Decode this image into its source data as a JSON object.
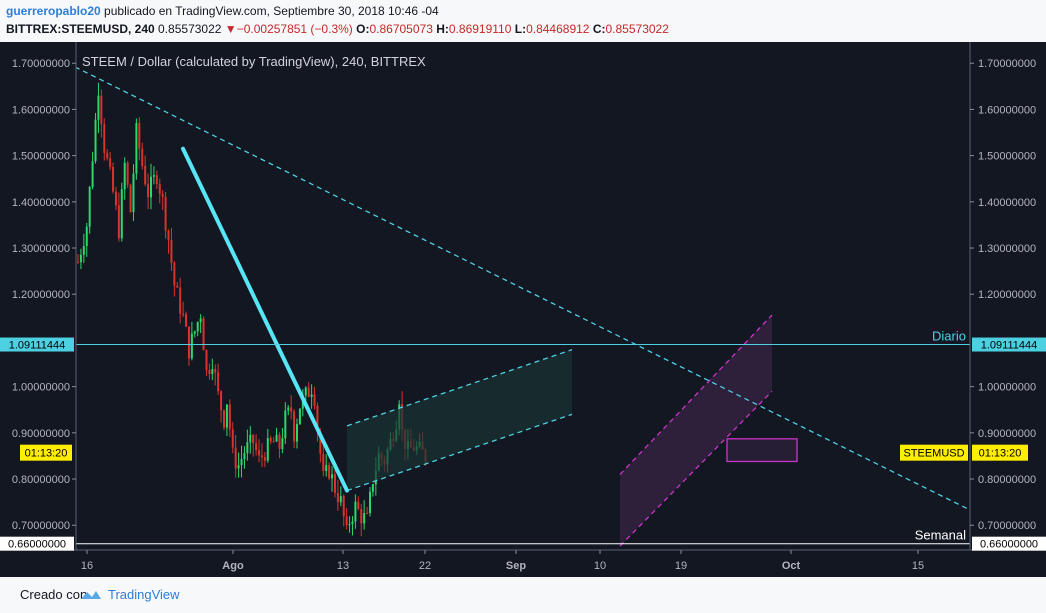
{
  "header": {
    "author": "guerreropablo20",
    "published": "publicado en TradingView.com, Septiembre 30, 2018 10:46 -04",
    "symbol": "BITTREX:STEEMUSD, 240",
    "last": "0.85573022",
    "change": "−0.00257851 (−0.3%)",
    "o_label": "O:",
    "o": "0.86705073",
    "h_label": "H:",
    "h": "0.86919110",
    "l_label": "L:",
    "l": "0.84468912",
    "c_label": "C:",
    "c": "0.85573022",
    "down_arrow_color": "#c62828"
  },
  "chart_data": {
    "type": "candlestick",
    "title": "STEEM / Dollar (calculated by TradingView), 240, BITTREX",
    "x_tick_labels": [
      "16",
      "Ago",
      "13",
      "22",
      "Sep",
      "10",
      "19",
      "Oct",
      "15"
    ],
    "y_tick_labels": [
      "1.70000000",
      "1.60000000",
      "1.50000000",
      "1.40000000",
      "1.30000000",
      "1.20000000",
      "1.00000000",
      "0.90000000",
      "0.80000000",
      "0.70000000"
    ],
    "ylim": [
      0.655,
      1.72
    ],
    "grid": false,
    "up_color": "#2bd96a",
    "down_color": "#d9342b",
    "path_anchors": [
      [
        0,
        1.27
      ],
      [
        3,
        1.35
      ],
      [
        5,
        1.5
      ],
      [
        7,
        1.65
      ],
      [
        9,
        1.52
      ],
      [
        12,
        1.42
      ],
      [
        14,
        1.34
      ],
      [
        16,
        1.48
      ],
      [
        18,
        1.38
      ],
      [
        20,
        1.55
      ],
      [
        22,
        1.48
      ],
      [
        24,
        1.42
      ],
      [
        27,
        1.46
      ],
      [
        29,
        1.4
      ],
      [
        31,
        1.32
      ],
      [
        33,
        1.22
      ],
      [
        36,
        1.15
      ],
      [
        38,
        1.08
      ],
      [
        40,
        1.12
      ],
      [
        42,
        1.16
      ],
      [
        44,
        1.03
      ],
      [
        46,
        1.06
      ],
      [
        48,
        0.98
      ],
      [
        50,
        0.93
      ],
      [
        51,
        0.97
      ],
      [
        53,
        0.85
      ],
      [
        55,
        0.83
      ],
      [
        57,
        0.86
      ],
      [
        60,
        0.88
      ],
      [
        62,
        0.84
      ],
      [
        64,
        0.86
      ],
      [
        67,
        0.88
      ],
      [
        69,
        0.87
      ],
      [
        71,
        0.93
      ],
      [
        73,
        0.95
      ],
      [
        74,
        0.9
      ],
      [
        76,
        0.96
      ],
      [
        78,
        0.98
      ],
      [
        80,
        1.0
      ],
      [
        81,
        0.98
      ],
      [
        82,
        0.91
      ],
      [
        84,
        0.8
      ],
      [
        86,
        0.82
      ],
      [
        88,
        0.78
      ],
      [
        90,
        0.75
      ],
      [
        92,
        0.68
      ],
      [
        93,
        0.71
      ],
      [
        95,
        0.74
      ],
      [
        97,
        0.72
      ],
      [
        99,
        0.71
      ],
      [
        101,
        0.8
      ],
      [
        103,
        0.85
      ],
      [
        105,
        0.84
      ],
      [
        107,
        0.88
      ],
      [
        109,
        0.93
      ],
      [
        110,
        0.98
      ],
      [
        111,
        0.9
      ],
      [
        113,
        0.86
      ],
      [
        115,
        0.87
      ],
      [
        117,
        0.86
      ],
      [
        119,
        0.85
      ]
    ],
    "candle_start_x": 78,
    "candle_step_px": 2.92,
    "horizontal_lines": [
      {
        "label": "Diario",
        "value": 1.09111444,
        "price_label": "1.09111444",
        "color": "#4dd0e1"
      },
      {
        "label": "Semanal",
        "value": 0.66,
        "price_label": "0.66000000",
        "color": "#ffffff"
      }
    ],
    "trendlines": [
      {
        "name": "descending-resistance",
        "from": [
          75,
          1.692
        ],
        "to": [
          970,
          0.733
        ],
        "style": "dashed",
        "color": "#4dd0e1"
      },
      {
        "name": "decline-trendline",
        "from": [
          183,
          1.515
        ],
        "to": [
          347,
          0.775
        ],
        "style": "solid",
        "color": "#56e6f5"
      }
    ],
    "channels": [
      {
        "name": "august-rising-channel",
        "lower": [
          [
            347,
            0.775
          ],
          [
            572,
            0.94
          ]
        ],
        "upper": [
          [
            347,
            0.915
          ],
          [
            572,
            1.08
          ]
        ],
        "color": "#4dd0e1",
        "fill": "#1a3535"
      },
      {
        "name": "september-rising-channel",
        "lower": [
          [
            620,
            0.655
          ],
          [
            772,
            0.99
          ]
        ],
        "upper": [
          [
            620,
            0.81
          ],
          [
            772,
            1.155
          ]
        ],
        "color": "#cc33cc",
        "fill": "#3a2545"
      }
    ],
    "rectangle": {
      "x0": 727,
      "x1": 797,
      "y0": 0.838,
      "y1": 0.887,
      "color": "#cc33cc"
    },
    "current_price_label": {
      "symbol": "STEEMUSD",
      "countdown": "01:13:20",
      "value": 0.857,
      "color": "#ffee00"
    }
  },
  "footer": {
    "created_with": "Creado con",
    "brand": "TradingView"
  }
}
